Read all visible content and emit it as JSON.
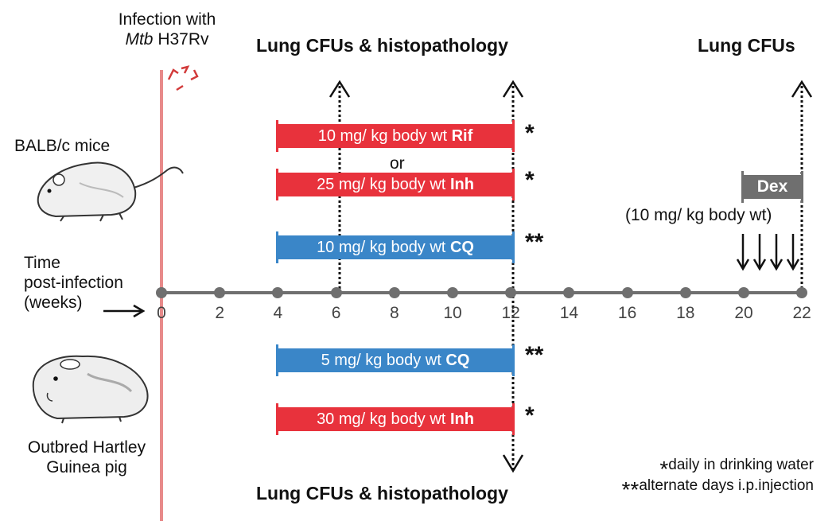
{
  "infection": {
    "line1": "Infection with",
    "pathogen_italic": "Mtb",
    "strain": " H37Rv"
  },
  "titles": {
    "top_left": "Lung CFUs & histopathology",
    "top_right": "Lung CFUs",
    "bottom": "Lung CFUs & histopathology"
  },
  "subjects": {
    "mice": "BALB/c mice",
    "guinea_line1": "Outbred Hartley",
    "guinea_line2": "Guinea pig"
  },
  "axis": {
    "label_line1": "Time",
    "label_line2": "post-infection",
    "label_line3": "(weeks)",
    "arrow": "→",
    "ticks": [
      "0",
      "2",
      "4",
      "6",
      "8",
      "10",
      "12",
      "14",
      "16",
      "18",
      "20",
      "22"
    ]
  },
  "treatments": {
    "mice_rif": {
      "prefix": "10 mg/ kg body wt ",
      "drug": "Rif",
      "mark": "*"
    },
    "or_text": "or",
    "mice_inh": {
      "prefix": "25 mg/ kg body wt ",
      "drug": "Inh",
      "mark": "*"
    },
    "mice_cq": {
      "prefix": "10 mg/ kg body wt ",
      "drug": "CQ",
      "mark": "**"
    },
    "gp_cq": {
      "prefix": "5 mg/ kg body wt ",
      "drug": "CQ",
      "mark": "**"
    },
    "gp_inh": {
      "prefix": "30 mg/ kg body wt ",
      "drug": "Inh",
      "mark": "*"
    }
  },
  "dex": {
    "label": "Dex",
    "dose": "(10 mg/ kg body wt)"
  },
  "legend": {
    "star1": "*",
    "text1": "daily in drinking water",
    "star2": "**",
    "text2": "alternate days i.p.injection"
  },
  "colors": {
    "red_bar": "#e8323c",
    "blue_bar": "#3a86c8",
    "grey": "#6f6f6f",
    "infection_line": "#e88a8a",
    "burst": "#d23a3a"
  },
  "icons": [
    "mouse-illustration",
    "guinea-pig-illustration",
    "infection-burst-icon"
  ]
}
